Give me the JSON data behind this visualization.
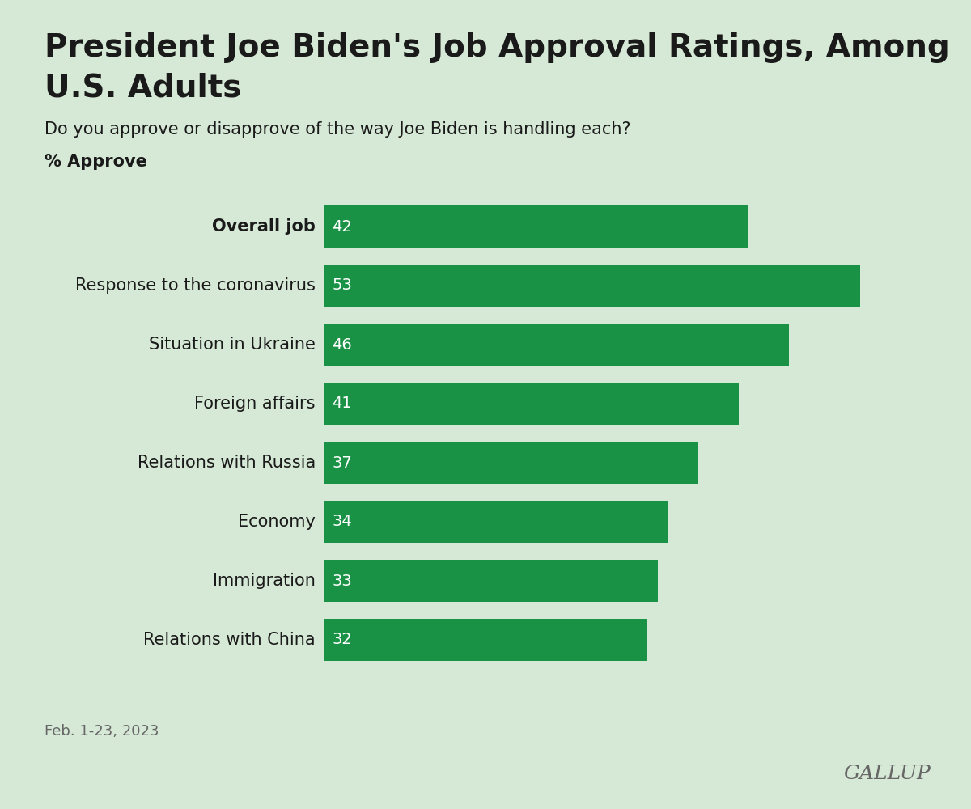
{
  "title_line1": "President Joe Biden's Job Approval Ratings, Among",
  "title_line2": "U.S. Adults",
  "subtitle": "Do you approve or disapprove of the way Joe Biden is handling each?",
  "ylabel_label": "% Approve",
  "categories": [
    "Overall job",
    "Response to the coronavirus",
    "Situation in Ukraine",
    "Foreign affairs",
    "Relations with Russia",
    "Economy",
    "Immigration",
    "Relations with China"
  ],
  "values": [
    42,
    53,
    46,
    41,
    37,
    34,
    33,
    32
  ],
  "bar_color": "#1a9245",
  "background_color": "#d6e8d6",
  "text_color": "#1a1a1a",
  "label_color": "#ffffff",
  "footnote": "Feb. 1-23, 2023",
  "footnote_color": "#666666",
  "gallup_text": "GALLUP",
  "gallup_color": "#666666",
  "bar_fontsize": 14,
  "category_fontsize": 15,
  "title_fontsize": 28,
  "subtitle_fontsize": 15,
  "bold_index": 0
}
